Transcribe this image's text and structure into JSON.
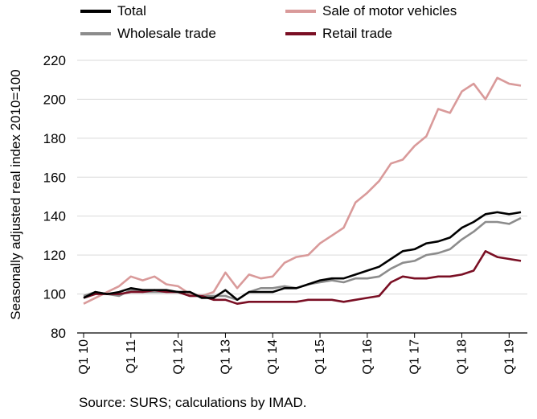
{
  "chart_data": {
    "type": "line",
    "ylabel": "Seasonally adjusted real index 2010=100",
    "source": "Source: SURS; calculations by IMAD.",
    "ylim": [
      80,
      220
    ],
    "yticks": [
      80,
      100,
      120,
      140,
      160,
      180,
      200,
      220
    ],
    "grid": "horizontal",
    "legend": "top",
    "x_tick_labels": [
      "Q1 10",
      "Q1 11",
      "Q1 12",
      "Q1 13",
      "Q1 14",
      "Q1 15",
      "Q1 16",
      "Q1 17",
      "Q1 18",
      "Q1 19"
    ],
    "periods_per_tick": 4,
    "series": [
      {
        "name": "Total",
        "color": "#000000",
        "values": [
          98,
          101,
          100,
          101,
          103,
          102,
          102,
          102,
          101,
          101,
          98,
          98,
          102,
          97,
          101,
          101,
          101,
          103,
          103,
          105,
          107,
          108,
          108,
          110,
          112,
          114,
          118,
          122,
          123,
          126,
          127,
          129,
          134,
          137,
          141,
          142,
          141,
          142
        ]
      },
      {
        "name": "Sale of motor vehicles",
        "color": "#d99a9a",
        "values": [
          95,
          98,
          101,
          104,
          109,
          107,
          109,
          105,
          104,
          100,
          99,
          101,
          111,
          103,
          110,
          108,
          109,
          116,
          119,
          120,
          126,
          130,
          134,
          147,
          152,
          158,
          167,
          169,
          176,
          181,
          195,
          193,
          204,
          208,
          200,
          211,
          208,
          207
        ]
      },
      {
        "name": "Wholesale trade",
        "color": "#8c8c8c",
        "values": [
          99,
          101,
          100,
          99,
          102,
          101,
          101,
          101,
          101,
          99,
          99,
          99,
          99,
          97,
          101,
          103,
          103,
          104,
          103,
          105,
          106,
          107,
          106,
          108,
          108,
          109,
          113,
          116,
          117,
          120,
          121,
          123,
          128,
          132,
          137,
          137,
          136,
          139
        ]
      },
      {
        "name": "Retail trade",
        "color": "#7a0f24",
        "values": [
          98,
          100,
          100,
          100,
          101,
          101,
          102,
          101,
          101,
          99,
          99,
          97,
          97,
          95,
          96,
          96,
          96,
          96,
          96,
          97,
          97,
          97,
          96,
          97,
          98,
          99,
          106,
          109,
          108,
          108,
          109,
          109,
          110,
          112,
          122,
          119,
          118,
          117
        ]
      }
    ]
  }
}
